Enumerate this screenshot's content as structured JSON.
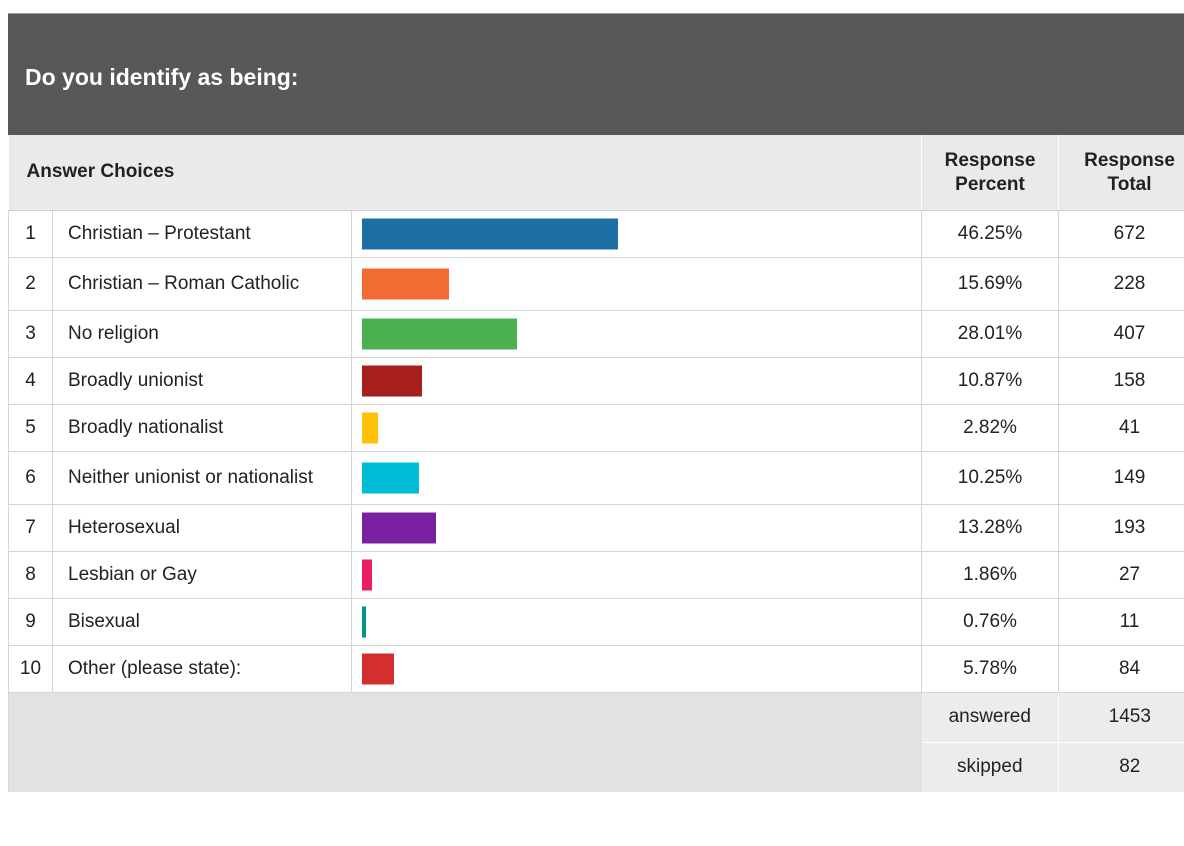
{
  "title": "Do you identify as being:",
  "headers": {
    "answer_choices": "Answer Choices",
    "response_percent_line1": "Response",
    "response_percent_line2": "Percent",
    "response_total_line1": "Response",
    "response_total_line2": "Total"
  },
  "footer": {
    "answered_label": "answered",
    "answered_value": "1453",
    "skipped_label": "skipped",
    "skipped_value": "82"
  },
  "chart_data": {
    "type": "bar",
    "categories": [
      "Christian – Protestant",
      "Christian – Roman Catholic",
      "No religion",
      "Broadly unionist",
      "Broadly nationalist",
      "Neither unionist or nationalist",
      "Heterosexual",
      "Lesbian or Gay",
      "Bisexual",
      "Other (please state):"
    ],
    "values": [
      46.25,
      15.69,
      28.01,
      10.87,
      2.82,
      10.25,
      13.28,
      1.86,
      0.76,
      5.78
    ],
    "percent_labels": [
      "46.25%",
      "15.69%",
      "28.01%",
      "10.87%",
      "2.82%",
      "10.25%",
      "13.28%",
      "1.86%",
      "0.76%",
      "5.78%"
    ],
    "totals": [
      "672",
      "228",
      "407",
      "158",
      "41",
      "149",
      "193",
      "27",
      "11",
      "84"
    ],
    "row_numbers": [
      "1",
      "2",
      "3",
      "4",
      "5",
      "6",
      "7",
      "8",
      "9",
      "10"
    ],
    "colors": [
      "#1f6fa7",
      "#f26b33",
      "#4caf50",
      "#a61e1e",
      "#ffc107",
      "#00bcd4",
      "#7b1fa2",
      "#e91e63",
      "#009688",
      "#d32f2f"
    ],
    "xlim": [
      0,
      100
    ],
    "orientation": "horizontal"
  }
}
